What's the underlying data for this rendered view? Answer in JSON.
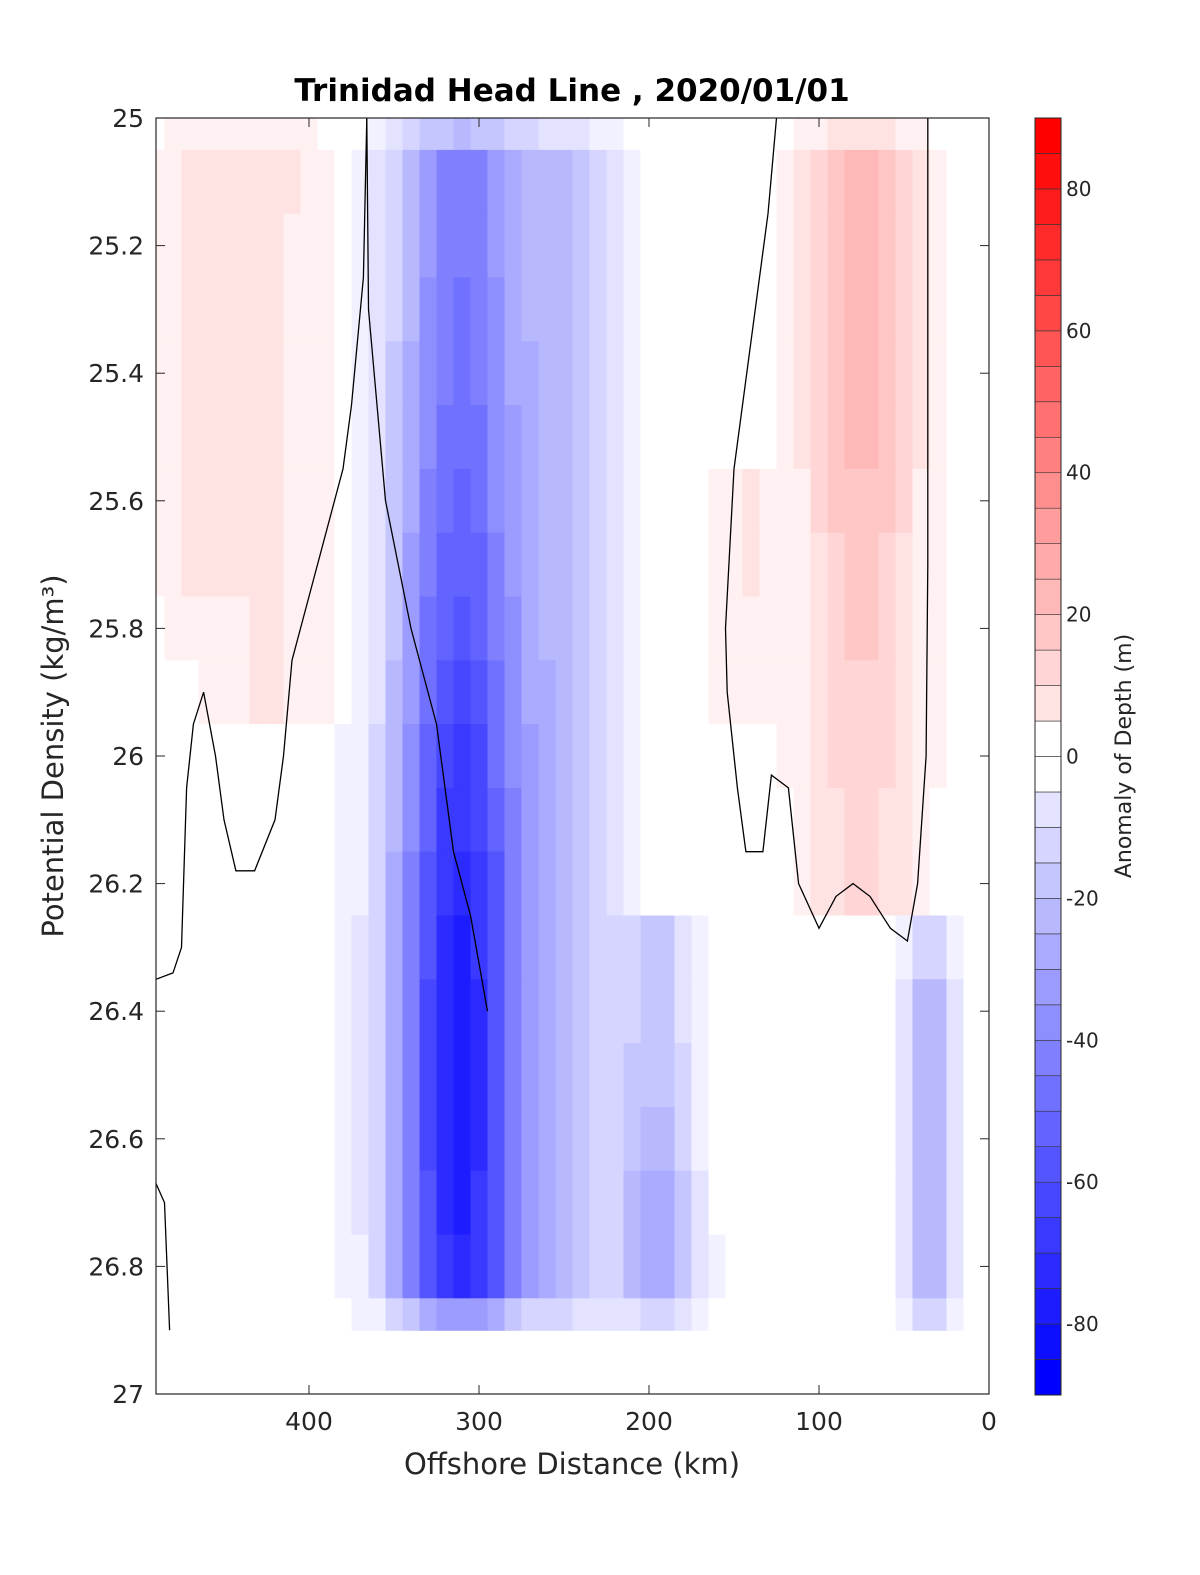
{
  "chart_data": {
    "type": "heatmap",
    "title": "Trinidad Head Line , 2020/01/01",
    "xlabel": "Offshore Distance (km)",
    "ylabel": "Potential Density (kg/m³)",
    "xlim": [
      490,
      0
    ],
    "xticks": [
      "400",
      "300",
      "200",
      "100",
      "0"
    ],
    "ylim": [
      25,
      27
    ],
    "yticks": [
      "25",
      "25.2",
      "25.4",
      "25.6",
      "25.8",
      "26",
      "26.2",
      "26.4",
      "26.6",
      "26.8",
      "27"
    ],
    "colorbar": {
      "label": "Anomaly of Depth (m)",
      "range": [
        -90,
        90
      ],
      "ticks": [
        "80",
        "60",
        "40",
        "20",
        "0",
        "-20",
        "-40",
        "-60",
        "-80"
      ],
      "negative_color": "#0000ff",
      "positive_color": "#ff0000"
    },
    "x": [
      490,
      480,
      470,
      460,
      450,
      440,
      430,
      420,
      410,
      400,
      390,
      380,
      370,
      360,
      350,
      340,
      330,
      320,
      310,
      300,
      290,
      280,
      270,
      260,
      250,
      240,
      230,
      220,
      210,
      200,
      190,
      180,
      170,
      160,
      150,
      140,
      130,
      120,
      110,
      100,
      90,
      80,
      70,
      60,
      50,
      40,
      30,
      20,
      10
    ],
    "y": [
      25.0,
      25.1,
      25.2,
      25.3,
      25.4,
      25.5,
      25.6,
      25.7,
      25.8,
      25.9,
      26.0,
      26.1,
      26.2,
      26.3,
      26.4,
      26.5,
      26.6,
      26.7,
      26.8,
      26.9
    ],
    "bottom_valid_y": 26.9,
    "features": [
      {
        "shape": "vertical-band",
        "x_center": 312,
        "x_width": 48,
        "y_range": [
          25.0,
          26.9
        ],
        "peak": -80,
        "deepest_at_y": 26.5
      },
      {
        "shape": "blob",
        "x_center": 250,
        "x_width": 40,
        "y_range": [
          25.0,
          26.9
        ],
        "peak": -20
      },
      {
        "shape": "blob",
        "x_center": 195,
        "x_width": 28,
        "y_range": [
          26.25,
          26.9
        ],
        "peak": -32,
        "deepest_at_y": 26.8
      },
      {
        "shape": "blob",
        "x_center": 420,
        "x_width": 50,
        "y_range": [
          25.0,
          25.95
        ],
        "peak": 8
      },
      {
        "shape": "blob",
        "x_center": 470,
        "x_width": 35,
        "y_range": [
          25.0,
          25.8
        ],
        "peak": 6
      },
      {
        "shape": "blob",
        "x_center": 75,
        "x_width": 42,
        "y_range": [
          25.0,
          26.25
        ],
        "peak": 26,
        "deepest_at_y": 25.3
      },
      {
        "shape": "blob",
        "x_center": 145,
        "x_width": 18,
        "y_range": [
          25.55,
          25.95
        ],
        "peak": 8
      },
      {
        "shape": "blob",
        "x_center": 35,
        "x_width": 18,
        "y_range": [
          26.3,
          26.9
        ],
        "peak": -30
      }
    ],
    "zero_contours": [
      [
        [
          366,
          25.0
        ],
        [
          365,
          25.3
        ],
        [
          355,
          25.6
        ],
        [
          340,
          25.8
        ],
        [
          325,
          25.95
        ],
        [
          315,
          26.15
        ],
        [
          305,
          26.25
        ],
        [
          295,
          26.4
        ]
      ],
      [
        [
          490,
          26.35
        ],
        [
          480,
          26.34
        ],
        [
          475,
          26.3
        ],
        [
          472,
          26.05
        ],
        [
          468,
          25.95
        ],
        [
          462,
          25.9
        ],
        [
          455,
          26.0
        ],
        [
          450,
          26.1
        ],
        [
          443,
          26.18
        ],
        [
          432,
          26.18
        ],
        [
          420,
          26.1
        ],
        [
          415,
          26.0
        ],
        [
          410,
          25.85
        ],
        [
          400,
          25.75
        ],
        [
          390,
          25.65
        ],
        [
          380,
          25.55
        ],
        [
          375,
          25.45
        ],
        [
          368,
          25.25
        ],
        [
          366,
          25.0
        ]
      ],
      [
        [
          490,
          26.67
        ],
        [
          485,
          26.7
        ],
        [
          482,
          26.9
        ]
      ],
      [
        [
          125,
          25.0
        ],
        [
          130,
          25.15
        ],
        [
          140,
          25.35
        ],
        [
          150,
          25.55
        ],
        [
          155,
          25.8
        ],
        [
          154,
          25.9
        ],
        [
          148,
          26.05
        ],
        [
          143,
          26.15
        ],
        [
          133,
          26.15
        ],
        [
          128,
          26.03
        ],
        [
          118,
          26.05
        ],
        [
          112,
          26.2
        ],
        [
          100,
          26.27
        ],
        [
          90,
          26.22
        ],
        [
          80,
          26.2
        ],
        [
          70,
          26.22
        ],
        [
          58,
          26.27
        ],
        [
          48,
          26.29
        ],
        [
          42,
          26.2
        ],
        [
          37,
          26.0
        ],
        [
          36,
          25.7
        ],
        [
          36,
          25.3
        ],
        [
          36,
          25.0
        ]
      ]
    ]
  }
}
